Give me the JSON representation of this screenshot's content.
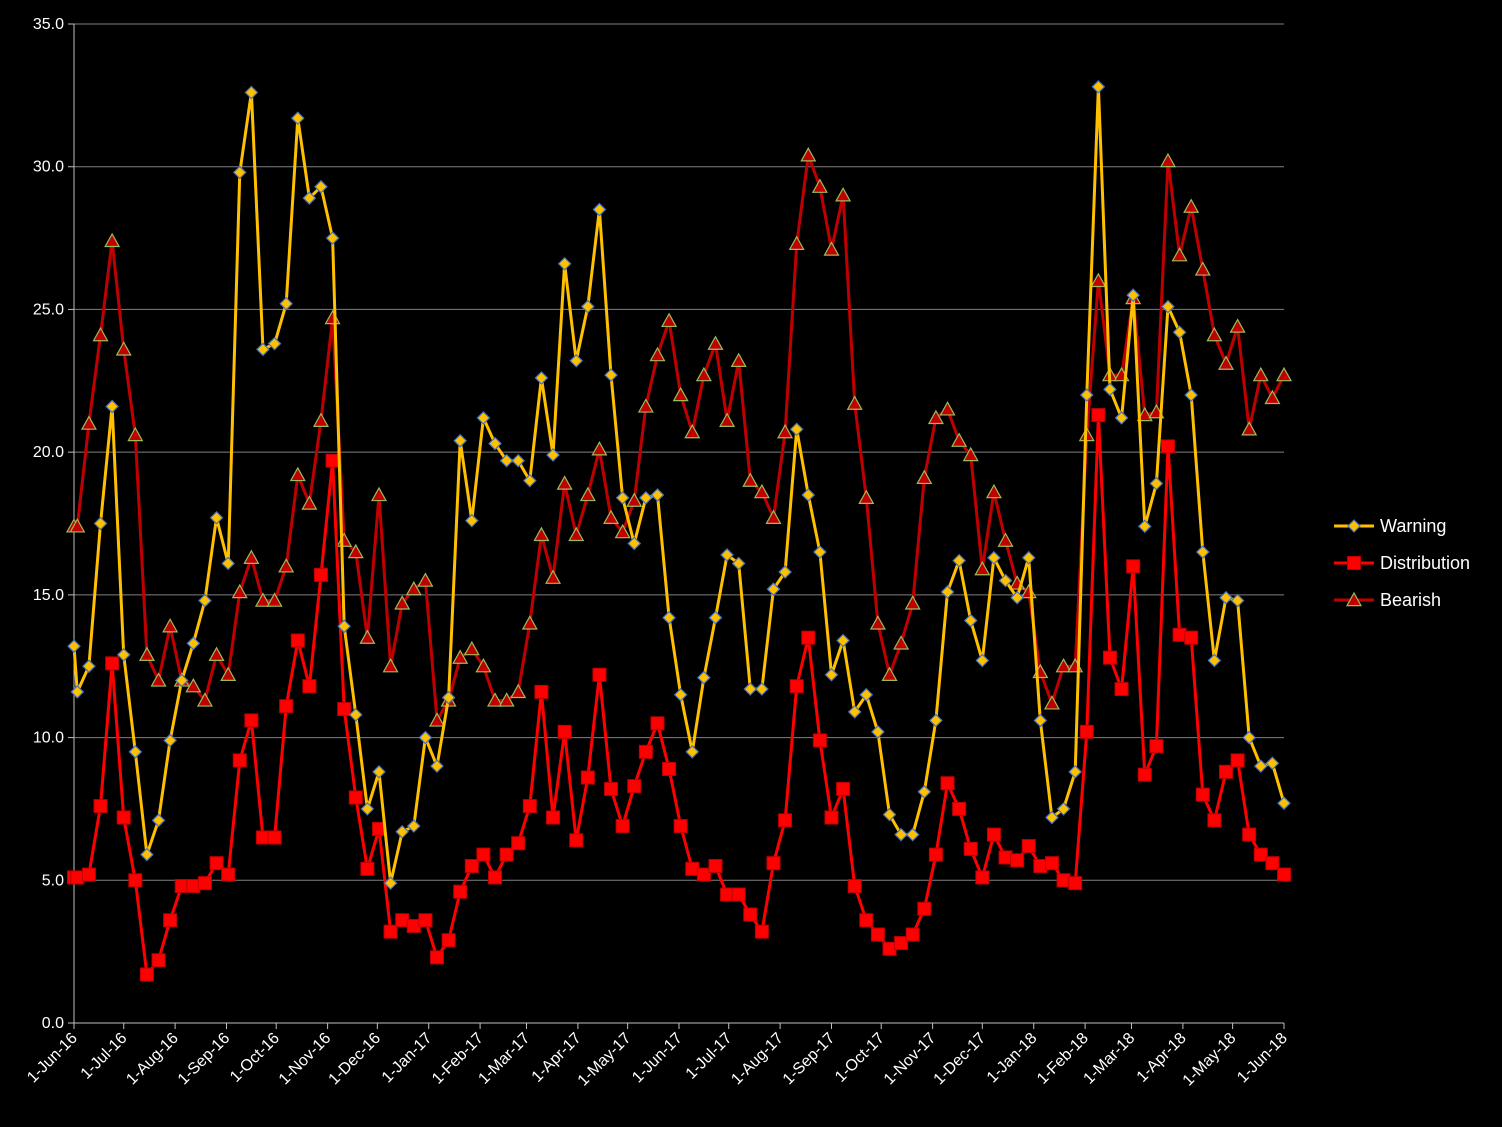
{
  "chart_data": {
    "type": "line",
    "title": "",
    "xlabel": "",
    "ylabel": "",
    "ylim": [
      0,
      35
    ],
    "yticks": [
      "0.0",
      "5.0",
      "10.0",
      "15.0",
      "20.0",
      "25.0",
      "30.0",
      "35.0"
    ],
    "x_start": "2016-06-01",
    "x_end": "2018-06-01",
    "xticks": [
      {
        "date": "2016-06-01",
        "label": "1-Jun-16"
      },
      {
        "date": "2016-07-01",
        "label": "1-Jul-16"
      },
      {
        "date": "2016-08-01",
        "label": "1-Aug-16"
      },
      {
        "date": "2016-09-01",
        "label": "1-Sep-16"
      },
      {
        "date": "2016-10-01",
        "label": "1-Oct-16"
      },
      {
        "date": "2016-11-01",
        "label": "1-Nov-16"
      },
      {
        "date": "2016-12-01",
        "label": "1-Dec-16"
      },
      {
        "date": "2017-01-01",
        "label": "1-Jan-17"
      },
      {
        "date": "2017-02-01",
        "label": "1-Feb-17"
      },
      {
        "date": "2017-03-01",
        "label": "1-Mar-17"
      },
      {
        "date": "2017-04-01",
        "label": "1-Apr-17"
      },
      {
        "date": "2017-05-01",
        "label": "1-May-17"
      },
      {
        "date": "2017-06-01",
        "label": "1-Jun-17"
      },
      {
        "date": "2017-07-01",
        "label": "1-Jul-17"
      },
      {
        "date": "2017-08-01",
        "label": "1-Aug-17"
      },
      {
        "date": "2017-09-01",
        "label": "1-Sep-17"
      },
      {
        "date": "2017-10-01",
        "label": "1-Oct-17"
      },
      {
        "date": "2017-11-01",
        "label": "1-Nov-17"
      },
      {
        "date": "2017-12-01",
        "label": "1-Dec-17"
      },
      {
        "date": "2018-01-01",
        "label": "1-Jan-18"
      },
      {
        "date": "2018-02-01",
        "label": "1-Feb-18"
      },
      {
        "date": "2018-03-01",
        "label": "1-Mar-18"
      },
      {
        "date": "2018-04-01",
        "label": "1-Apr-18"
      },
      {
        "date": "2018-05-01",
        "label": "1-May-18"
      },
      {
        "date": "2018-06-01",
        "label": "1-Jun-18"
      }
    ],
    "grid": true,
    "legend_position": "right",
    "x": [
      "2016-06-01",
      "2016-06-03",
      "2016-06-10",
      "2016-06-17",
      "2016-06-24",
      "2016-07-01",
      "2016-07-08",
      "2016-07-15",
      "2016-07-22",
      "2016-07-29",
      "2016-08-05",
      "2016-08-12",
      "2016-08-19",
      "2016-08-26",
      "2016-09-02",
      "2016-09-09",
      "2016-09-16",
      "2016-09-23",
      "2016-09-30",
      "2016-10-07",
      "2016-10-14",
      "2016-10-21",
      "2016-10-28",
      "2016-11-04",
      "2016-11-11",
      "2016-11-18",
      "2016-11-25",
      "2016-12-02",
      "2016-12-09",
      "2016-12-16",
      "2016-12-23",
      "2016-12-30",
      "2017-01-06",
      "2017-01-13",
      "2017-01-20",
      "2017-01-27",
      "2017-02-03",
      "2017-02-10",
      "2017-02-17",
      "2017-02-24",
      "2017-03-03",
      "2017-03-10",
      "2017-03-17",
      "2017-03-24",
      "2017-03-31",
      "2017-04-07",
      "2017-04-14",
      "2017-04-21",
      "2017-04-28",
      "2017-05-05",
      "2017-05-12",
      "2017-05-19",
      "2017-05-26",
      "2017-06-02",
      "2017-06-09",
      "2017-06-16",
      "2017-06-23",
      "2017-06-30",
      "2017-07-07",
      "2017-07-14",
      "2017-07-21",
      "2017-07-28",
      "2017-08-04",
      "2017-08-11",
      "2017-08-18",
      "2017-08-25",
      "2017-09-01",
      "2017-09-08",
      "2017-09-15",
      "2017-09-22",
      "2017-09-29",
      "2017-10-06",
      "2017-10-13",
      "2017-10-20",
      "2017-10-27",
      "2017-11-03",
      "2017-11-10",
      "2017-11-17",
      "2017-11-24",
      "2017-12-01",
      "2017-12-08",
      "2017-12-15",
      "2017-12-22",
      "2017-12-29",
      "2018-01-05",
      "2018-01-12",
      "2018-01-19",
      "2018-01-26",
      "2018-02-02",
      "2018-02-09",
      "2018-02-16",
      "2018-02-23",
      "2018-03-02",
      "2018-03-09",
      "2018-03-16",
      "2018-03-23",
      "2018-03-30",
      "2018-04-06",
      "2018-04-13",
      "2018-04-20",
      "2018-04-27",
      "2018-05-04",
      "2018-05-11",
      "2018-05-18",
      "2018-05-25",
      "2018-06-01"
    ],
    "series": [
      {
        "name": "Warning",
        "color": "#FFC000",
        "marker": "diamond",
        "values": [
          13.2,
          11.6,
          12.5,
          17.5,
          21.6,
          12.9,
          9.5,
          5.9,
          7.1,
          9.9,
          12.0,
          13.3,
          14.8,
          17.7,
          16.1,
          29.8,
          32.6,
          23.6,
          23.8,
          25.2,
          31.7,
          28.9,
          29.3,
          27.5,
          13.9,
          10.8,
          7.5,
          8.8,
          4.9,
          6.7,
          6.9,
          10.0,
          9.0,
          11.4,
          20.4,
          17.6,
          21.2,
          20.3,
          19.7,
          19.7,
          19.0,
          22.6,
          19.9,
          26.6,
          23.2,
          25.1,
          28.5,
          22.7,
          18.4,
          16.8,
          18.4,
          18.5,
          14.2,
          11.5,
          9.5,
          12.1,
          14.2,
          16.4,
          16.1,
          11.7,
          11.7,
          15.2,
          15.8,
          20.8,
          18.5,
          16.5,
          12.2,
          13.4,
          10.9,
          11.5,
          10.2,
          7.3,
          6.6,
          6.6,
          8.1,
          10.6,
          15.1,
          16.2,
          14.1,
          12.7,
          16.3,
          15.5,
          14.9,
          16.3,
          10.6,
          7.2,
          7.5,
          8.8,
          22.0,
          32.8,
          22.2,
          21.2,
          25.5,
          17.4,
          18.9,
          25.1,
          24.2,
          22.0,
          16.5,
          12.7,
          14.9,
          14.8,
          10.0,
          9.0,
          9.1,
          7.7
        ]
      },
      {
        "name": "Distribution",
        "color": "#FF0000",
        "marker": "square",
        "values": [
          5.1,
          5.1,
          5.2,
          7.6,
          12.6,
          7.2,
          5.0,
          1.7,
          2.2,
          3.6,
          4.8,
          4.8,
          4.9,
          5.6,
          5.2,
          9.2,
          10.6,
          6.5,
          6.5,
          11.1,
          13.4,
          11.8,
          15.7,
          19.7,
          11.0,
          7.9,
          5.4,
          6.8,
          3.2,
          3.6,
          3.4,
          3.6,
          2.3,
          2.9,
          4.6,
          5.5,
          5.9,
          5.1,
          5.9,
          6.3,
          7.6,
          11.6,
          7.2,
          10.2,
          6.4,
          8.6,
          12.2,
          8.2,
          6.9,
          8.3,
          9.5,
          10.5,
          8.9,
          6.9,
          5.4,
          5.2,
          5.5,
          4.5,
          4.5,
          3.8,
          3.2,
          5.6,
          7.1,
          11.8,
          13.5,
          9.9,
          7.2,
          8.2,
          4.8,
          3.6,
          3.1,
          2.6,
          2.8,
          3.1,
          4.0,
          5.9,
          8.4,
          7.5,
          6.1,
          5.1,
          6.6,
          5.8,
          5.7,
          6.2,
          5.5,
          5.6,
          5.0,
          4.9,
          10.2,
          21.3,
          12.8,
          11.7,
          16.0,
          8.7,
          9.7,
          20.2,
          13.6,
          13.5,
          8.0,
          7.1,
          8.8,
          9.2,
          6.6,
          5.9,
          5.6,
          5.2
        ]
      },
      {
        "name": "Bearish",
        "color": "#C00000",
        "marker": "triangle",
        "values": [
          17.4,
          17.4,
          21.0,
          24.1,
          27.4,
          23.6,
          20.6,
          12.9,
          12.0,
          13.9,
          12.0,
          11.8,
          11.3,
          12.9,
          12.2,
          15.1,
          16.3,
          14.8,
          14.8,
          16.0,
          19.2,
          18.2,
          21.1,
          24.7,
          16.9,
          16.5,
          13.5,
          18.5,
          12.5,
          14.7,
          15.2,
          15.5,
          10.6,
          11.3,
          12.8,
          13.1,
          12.5,
          11.3,
          11.3,
          11.6,
          14.0,
          17.1,
          15.6,
          18.9,
          17.1,
          18.5,
          20.1,
          17.7,
          17.2,
          18.3,
          21.6,
          23.4,
          24.6,
          22.0,
          20.7,
          22.7,
          23.8,
          21.1,
          23.2,
          19.0,
          18.6,
          17.7,
          20.7,
          27.3,
          30.4,
          29.3,
          27.1,
          29.0,
          21.7,
          18.4,
          14.0,
          12.2,
          13.3,
          14.7,
          19.1,
          21.2,
          21.5,
          20.4,
          19.9,
          15.9,
          18.6,
          16.9,
          15.4,
          15.1,
          12.3,
          11.2,
          12.5,
          12.5,
          20.6,
          26.0,
          22.7,
          22.7,
          25.4,
          21.3,
          21.4,
          30.2,
          26.9,
          28.6,
          26.4,
          24.1,
          23.1,
          24.4,
          20.8,
          22.7,
          21.9,
          22.7
        ]
      }
    ]
  }
}
